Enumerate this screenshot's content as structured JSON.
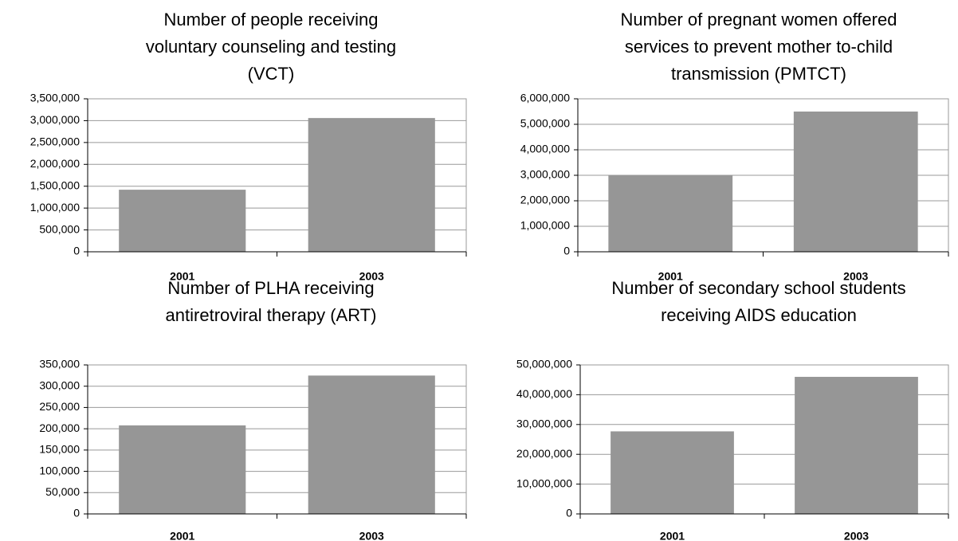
{
  "chart_data": [
    {
      "type": "bar",
      "title": [
        "Number of people receiving",
        "voluntary counseling and testing",
        "(VCT)"
      ],
      "categories": [
        "2001",
        "2003"
      ],
      "values": [
        1420000,
        3060000
      ],
      "color": "#969696",
      "ylim": [
        0,
        3500000
      ],
      "yticks": [
        0,
        {
          "value": 500000,
          "label": "500,000"
        },
        {
          "value": 1000000,
          "label": "1,000,000"
        },
        {
          "value": 1500000,
          "label": "1,500,000"
        },
        {
          "value": 2000000,
          "label": "2,000,000"
        },
        {
          "value": 2500000,
          "label": "2,500,000"
        },
        {
          "value": 3000000,
          "label": "3,000,000"
        },
        {
          "value": 3500000,
          "label": "3,500,000"
        }
      ],
      "grid": true
    },
    {
      "type": "bar",
      "title": [
        "Number of pregnant women offered",
        "services to prevent mother to-child",
        "transmission (PMTCT)"
      ],
      "categories": [
        "2001",
        "2003"
      ],
      "values": [
        3000000,
        5500000
      ],
      "color": "#969696",
      "ylim": [
        0,
        6000000
      ],
      "yticks": [
        0,
        {
          "value": 1000000,
          "label": "1,000,000"
        },
        {
          "value": 2000000,
          "label": "2,000,000"
        },
        {
          "value": 3000000,
          "label": "3,000,000"
        },
        {
          "value": 4000000,
          "label": "4,000,000"
        },
        {
          "value": 5000000,
          "label": "5,000,000"
        },
        {
          "value": 6000000,
          "label": "6,000,000"
        }
      ],
      "grid": true
    },
    {
      "type": "bar",
      "title": [
        "Number of PLHA receiving",
        "antiretroviral therapy (ART)"
      ],
      "categories": [
        "2001",
        "2003"
      ],
      "values": [
        208000,
        325000
      ],
      "color": "#969696",
      "ylim": [
        0,
        350000
      ],
      "yticks": [
        0,
        {
          "value": 50000,
          "label": "50,000"
        },
        {
          "value": 100000,
          "label": "100,000"
        },
        {
          "value": 150000,
          "label": "150,000"
        },
        {
          "value": 200000,
          "label": "200,000"
        },
        {
          "value": 250000,
          "label": "250,000"
        },
        {
          "value": 300000,
          "label": "300,000"
        },
        {
          "value": 350000,
          "label": "350,000"
        }
      ],
      "grid": true
    },
    {
      "type": "bar",
      "title": [
        "Number of secondary school students",
        "receiving AIDS education"
      ],
      "categories": [
        "2001",
        "2003"
      ],
      "values": [
        27700000,
        46000000
      ],
      "color": "#969696",
      "ylim": [
        0,
        50000000
      ],
      "yticks": [
        0,
        {
          "value": 10000000,
          "label": "10,000,000"
        },
        {
          "value": 20000000,
          "label": "20,000,000"
        },
        {
          "value": 30000000,
          "label": "30,000,000"
        },
        {
          "value": 40000000,
          "label": "40,000,000"
        },
        {
          "value": 50000000,
          "label": "50,000,000"
        }
      ],
      "grid": true
    }
  ]
}
